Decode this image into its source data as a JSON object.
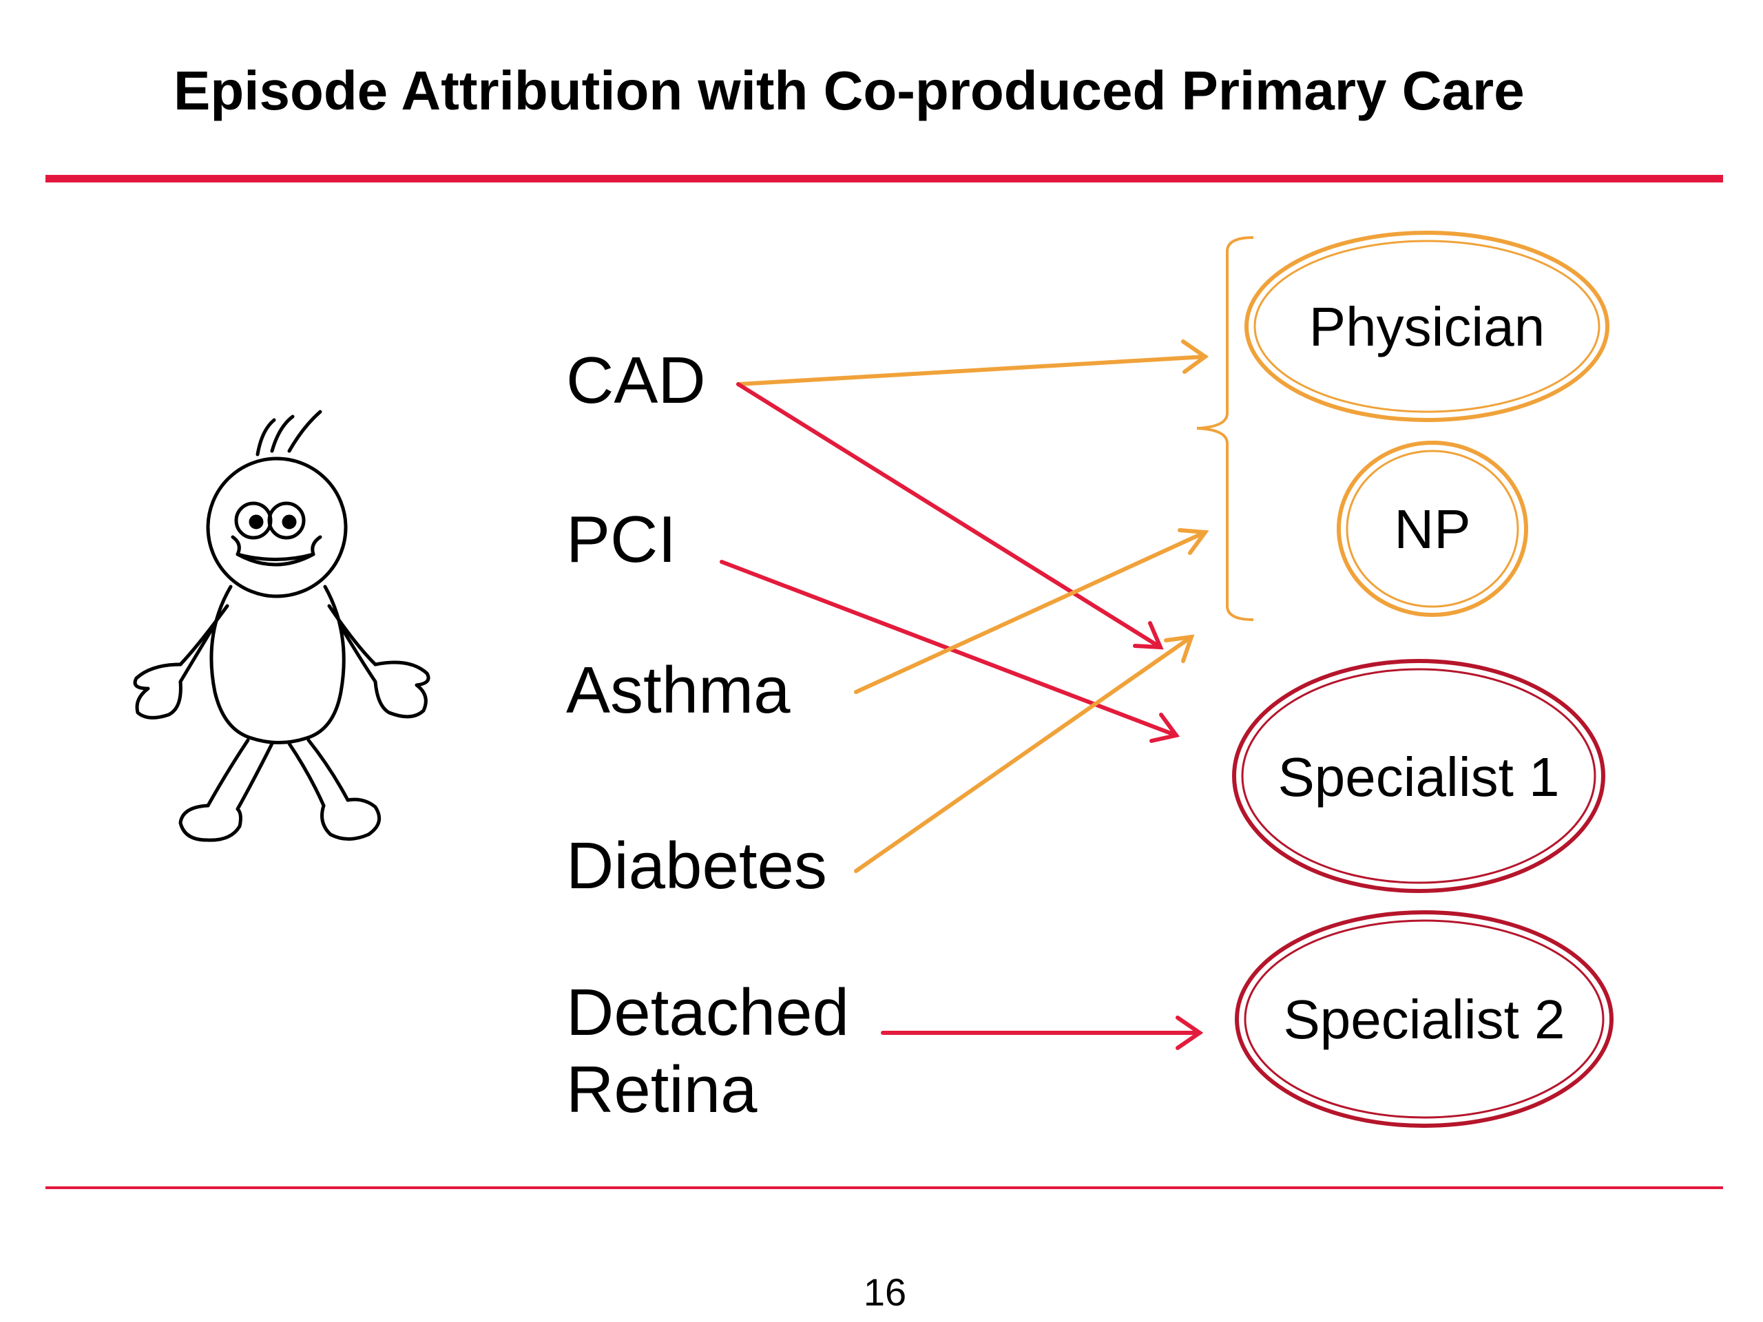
{
  "title": "Episode Attribution with Co-produced Primary Care",
  "colors": {
    "rule": "#e3173e",
    "primary_care": "#f0a23a",
    "specialist": "#b5152b",
    "arrow_red": "#e31b3c",
    "arrow_orange": "#f0a23a"
  },
  "patient_icon": "stick-figure-patient-icon",
  "episodes": [
    {
      "id": "cad",
      "label": "CAD"
    },
    {
      "id": "pci",
      "label": "PCI"
    },
    {
      "id": "asthma",
      "label": "Asthma"
    },
    {
      "id": "diabetes",
      "label": "Diabetes"
    },
    {
      "id": "retina",
      "label_line1": "Detached",
      "label_line2": "Retina"
    }
  ],
  "providers": [
    {
      "id": "physician",
      "label": "Physician",
      "group": "primary-care"
    },
    {
      "id": "np",
      "label": "NP",
      "group": "primary-care"
    },
    {
      "id": "specialist1",
      "label": "Specialist 1",
      "group": "specialist"
    },
    {
      "id": "specialist2",
      "label": "Specialist 2",
      "group": "specialist"
    }
  ],
  "attributions": [
    {
      "from": "CAD",
      "to": "Physician/NP",
      "color": "orange"
    },
    {
      "from": "CAD",
      "to": "Specialist 1",
      "color": "red"
    },
    {
      "from": "PCI",
      "to": "Specialist 1",
      "color": "red"
    },
    {
      "from": "Asthma",
      "to": "Physician/NP",
      "color": "orange"
    },
    {
      "from": "Diabetes",
      "to": "Physician/NP",
      "color": "orange"
    },
    {
      "from": "Detached Retina",
      "to": "Specialist 2",
      "color": "red"
    }
  ],
  "page_number": "16"
}
